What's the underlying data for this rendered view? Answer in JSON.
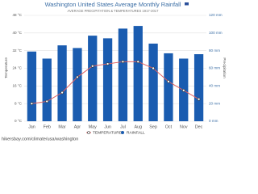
{
  "chart_data": {
    "type": "combo",
    "title": "Washington United States Average Monthly Rainfall",
    "subtitle": "AVERAGE PRECIPITATION & TEMPERATURES 1917-2017",
    "y_label": "Temperature",
    "y2_label": "Precipitation",
    "source": "hikersbay.com/climate/usa/washington",
    "categories": [
      "Jan",
      "Feb",
      "Mar",
      "Apr",
      "May",
      "Jun",
      "Jul",
      "Aug",
      "Sep",
      "Oct",
      "Nov",
      "Dec"
    ],
    "series": [
      {
        "name": "TEMPERATURE",
        "type": "line",
        "color": "#e06060",
        "values": [
          8,
          9,
          13,
          20,
          25,
          26,
          27,
          27,
          24,
          18,
          14,
          10
        ]
      },
      {
        "name": "RAINFALL",
        "type": "bar",
        "axis": "y2",
        "color": "#1a5cb0",
        "values": [
          79,
          71,
          86,
          83,
          97,
          94,
          105,
          108,
          88,
          77,
          71,
          76
        ]
      }
    ],
    "ylim": [
      0,
      48
    ],
    "yticks": [
      {
        "value": 0,
        "label": "0 °C"
      },
      {
        "value": 8,
        "label": "8 °C"
      },
      {
        "value": 16,
        "label": "16 °C"
      },
      {
        "value": 24,
        "label": "24 °C"
      },
      {
        "value": 32,
        "label": "32 °C"
      },
      {
        "value": 40,
        "label": "40 °C"
      },
      {
        "value": 48,
        "label": "48 °C"
      }
    ],
    "y2lim": [
      0,
      120
    ],
    "y2ticks": [
      {
        "value": 0,
        "label": "0 mm"
      },
      {
        "value": 20,
        "label": "20 mm"
      },
      {
        "value": 40,
        "label": "40 mm"
      },
      {
        "value": 60,
        "label": "60 mm"
      },
      {
        "value": 80,
        "label": "80 mm"
      },
      {
        "value": 100,
        "label": "100 mm"
      },
      {
        "value": 120,
        "label": "120 mm"
      }
    ],
    "grid": true
  }
}
